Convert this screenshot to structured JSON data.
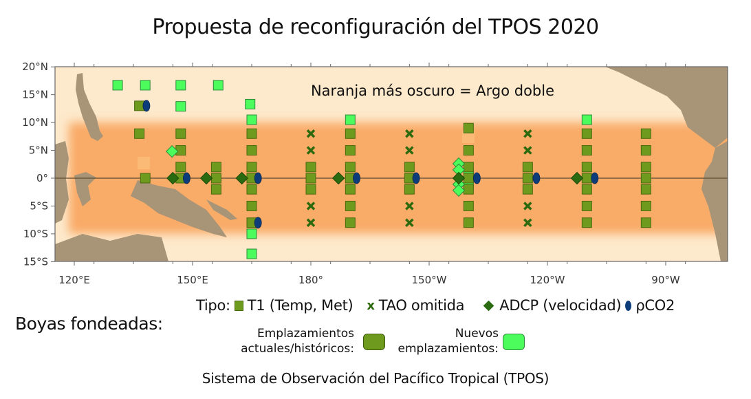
{
  "title": "Propuesta de reconfiguración del TPOS 2020",
  "annotation": "Naranja más oscuro = Argo doble",
  "axes": {
    "lat_ticks": [
      {
        "v": 20,
        "label": "20°N"
      },
      {
        "v": 15,
        "label": "15°N"
      },
      {
        "v": 10,
        "label": "10°N"
      },
      {
        "v": 5,
        "label": "5°N"
      },
      {
        "v": 0,
        "label": "0°"
      },
      {
        "v": -5,
        "label": "5°S"
      },
      {
        "v": -10,
        "label": "10°S"
      },
      {
        "v": -15,
        "label": "15°S"
      }
    ],
    "lon_ticks": [
      {
        "v": 120,
        "label": "120°E"
      },
      {
        "v": 150,
        "label": "150°E"
      },
      {
        "v": 180,
        "label": "180°"
      },
      {
        "v": 210,
        "label": "150°W"
      },
      {
        "v": 240,
        "label": "120°W"
      },
      {
        "v": 270,
        "label": "90°W"
      }
    ],
    "lon_range_deg_east": [
      115,
      285
    ],
    "lat_range": [
      -15,
      20
    ]
  },
  "colors": {
    "ocean": "#fde9cc",
    "argo_double_band": "#f9ab68",
    "land": "#a89477",
    "existing": "#6e9a1e",
    "new": "#4cfc5c",
    "tao_omitted": "#2d6a0e",
    "adcp": "#2a6a10",
    "pco2": "#0c3d7a"
  },
  "argo_double_band_lat": [
    -10,
    10
  ],
  "markers": [
    {
      "type": "t1",
      "status": "new",
      "lon": 131,
      "lat": 16.7
    },
    {
      "type": "t1",
      "status": "new",
      "lon": 138,
      "lat": 16.7
    },
    {
      "type": "t1",
      "status": "new",
      "lon": 147,
      "lat": 16.7
    },
    {
      "type": "t1",
      "status": "new",
      "lon": 156.5,
      "lat": 16.7
    },
    {
      "type": "t1",
      "status": "new",
      "lon": 147,
      "lat": 12.9
    },
    {
      "type": "t1",
      "status": "new",
      "lon": 164.6,
      "lat": 13.3
    },
    {
      "type": "t1",
      "status": "new",
      "lon": 165,
      "lat": 10.5
    },
    {
      "type": "t1",
      "status": "new",
      "lon": 165,
      "lat": -10
    },
    {
      "type": "t1",
      "status": "new",
      "lon": 165,
      "lat": -13.6
    },
    {
      "type": "t1",
      "status": "new",
      "lon": 190,
      "lat": 10.5
    },
    {
      "type": "t1",
      "status": "new",
      "lon": 250,
      "lat": 10.5
    },
    {
      "type": "t1",
      "status": "new",
      "lon": 220,
      "lat": 1
    },
    {
      "type": "t1",
      "status": "new",
      "lon": 220,
      "lat": -1.2
    },
    {
      "type": "t1",
      "status": "existing",
      "lon": 136.5,
      "lat": 13
    },
    {
      "type": "t1",
      "status": "existing",
      "lon": 136.5,
      "lat": 8
    },
    {
      "type": "t1",
      "status": "existing",
      "lon": 138,
      "lat": 0
    },
    {
      "type": "t1",
      "status": "existing",
      "lon": 147,
      "lat": 8
    },
    {
      "type": "t1",
      "status": "existing",
      "lon": 147,
      "lat": 5
    },
    {
      "type": "t1",
      "status": "existing",
      "lon": 147,
      "lat": 2
    },
    {
      "type": "t1",
      "status": "existing",
      "lon": 147,
      "lat": 0
    },
    {
      "type": "t1",
      "status": "existing",
      "lon": 156,
      "lat": 2
    },
    {
      "type": "t1",
      "status": "existing",
      "lon": 156,
      "lat": 0
    },
    {
      "type": "t1",
      "status": "existing",
      "lon": 156,
      "lat": -2
    },
    {
      "type": "t1",
      "status": "existing",
      "lon": 165,
      "lat": 8
    },
    {
      "type": "t1",
      "status": "existing",
      "lon": 165,
      "lat": 5
    },
    {
      "type": "t1",
      "status": "existing",
      "lon": 165,
      "lat": 2
    },
    {
      "type": "t1",
      "status": "existing",
      "lon": 165,
      "lat": 0
    },
    {
      "type": "t1",
      "status": "existing",
      "lon": 165,
      "lat": -2
    },
    {
      "type": "t1",
      "status": "existing",
      "lon": 165,
      "lat": -5
    },
    {
      "type": "t1",
      "status": "existing",
      "lon": 165,
      "lat": -8
    },
    {
      "type": "tao_omitted",
      "lon": 180,
      "lat": 8
    },
    {
      "type": "tao_omitted",
      "lon": 180,
      "lat": 5
    },
    {
      "type": "t1",
      "status": "existing",
      "lon": 180,
      "lat": 2
    },
    {
      "type": "t1",
      "status": "existing",
      "lon": 180,
      "lat": 0
    },
    {
      "type": "t1",
      "status": "existing",
      "lon": 180,
      "lat": -2
    },
    {
      "type": "tao_omitted",
      "lon": 180,
      "lat": -5
    },
    {
      "type": "tao_omitted",
      "lon": 180,
      "lat": -8
    },
    {
      "type": "t1",
      "status": "existing",
      "lon": 190,
      "lat": 8
    },
    {
      "type": "t1",
      "status": "existing",
      "lon": 190,
      "lat": 5
    },
    {
      "type": "t1",
      "status": "existing",
      "lon": 190,
      "lat": 2
    },
    {
      "type": "t1",
      "status": "existing",
      "lon": 190,
      "lat": 0
    },
    {
      "type": "t1",
      "status": "existing",
      "lon": 190,
      "lat": -2
    },
    {
      "type": "t1",
      "status": "existing",
      "lon": 190,
      "lat": -5
    },
    {
      "type": "t1",
      "status": "existing",
      "lon": 190,
      "lat": -8
    },
    {
      "type": "tao_omitted",
      "lon": 205,
      "lat": 8
    },
    {
      "type": "tao_omitted",
      "lon": 205,
      "lat": 5
    },
    {
      "type": "t1",
      "status": "existing",
      "lon": 205,
      "lat": 2
    },
    {
      "type": "t1",
      "status": "existing",
      "lon": 205,
      "lat": 0
    },
    {
      "type": "t1",
      "status": "existing",
      "lon": 205,
      "lat": -2
    },
    {
      "type": "tao_omitted",
      "lon": 205,
      "lat": -5
    },
    {
      "type": "tao_omitted",
      "lon": 205,
      "lat": -8
    },
    {
      "type": "t1",
      "status": "existing",
      "lon": 220,
      "lat": 9
    },
    {
      "type": "t1",
      "status": "existing",
      "lon": 220,
      "lat": 5
    },
    {
      "type": "t1",
      "status": "existing",
      "lon": 220,
      "lat": 2
    },
    {
      "type": "t1",
      "status": "existing",
      "lon": 220,
      "lat": 0
    },
    {
      "type": "t1",
      "status": "existing",
      "lon": 220,
      "lat": -2
    },
    {
      "type": "t1",
      "status": "existing",
      "lon": 220,
      "lat": -5
    },
    {
      "type": "t1",
      "status": "existing",
      "lon": 220,
      "lat": -8
    },
    {
      "type": "tao_omitted",
      "lon": 235,
      "lat": 8
    },
    {
      "type": "tao_omitted",
      "lon": 235,
      "lat": 5
    },
    {
      "type": "t1",
      "status": "existing",
      "lon": 235,
      "lat": 2
    },
    {
      "type": "t1",
      "status": "existing",
      "lon": 235,
      "lat": 0
    },
    {
      "type": "t1",
      "status": "existing",
      "lon": 235,
      "lat": -2
    },
    {
      "type": "tao_omitted",
      "lon": 235,
      "lat": -5
    },
    {
      "type": "tao_omitted",
      "lon": 235,
      "lat": -8
    },
    {
      "type": "t1",
      "status": "existing",
      "lon": 250,
      "lat": 8
    },
    {
      "type": "t1",
      "status": "existing",
      "lon": 250,
      "lat": 5
    },
    {
      "type": "t1",
      "status": "existing",
      "lon": 250,
      "lat": 2
    },
    {
      "type": "t1",
      "status": "existing",
      "lon": 250,
      "lat": 0
    },
    {
      "type": "t1",
      "status": "existing",
      "lon": 250,
      "lat": -2
    },
    {
      "type": "t1",
      "status": "existing",
      "lon": 250,
      "lat": -5
    },
    {
      "type": "t1",
      "status": "existing",
      "lon": 250,
      "lat": -8
    },
    {
      "type": "t1",
      "status": "existing",
      "lon": 265,
      "lat": 8
    },
    {
      "type": "t1",
      "status": "existing",
      "lon": 265,
      "lat": 5
    },
    {
      "type": "t1",
      "status": "existing",
      "lon": 265,
      "lat": 2
    },
    {
      "type": "t1",
      "status": "existing",
      "lon": 265,
      "lat": 0
    },
    {
      "type": "t1",
      "status": "existing",
      "lon": 265,
      "lat": -2
    },
    {
      "type": "t1",
      "status": "existing",
      "lon": 265,
      "lat": -5
    },
    {
      "type": "t1",
      "status": "existing",
      "lon": 265,
      "lat": -8
    },
    {
      "type": "adcp",
      "status": "new",
      "lon": 144.8,
      "lat": 4.8
    },
    {
      "type": "adcp",
      "status": "existing",
      "lon": 145,
      "lat": 0
    },
    {
      "type": "adcp",
      "status": "existing",
      "lon": 153.5,
      "lat": 0
    },
    {
      "type": "adcp",
      "status": "existing",
      "lon": 162.5,
      "lat": 0
    },
    {
      "type": "adcp",
      "status": "existing",
      "lon": 187,
      "lat": 0
    },
    {
      "type": "adcp",
      "status": "new",
      "lon": 217.5,
      "lat": 2.6
    },
    {
      "type": "adcp",
      "status": "new",
      "lon": 217.5,
      "lat": 1.5
    },
    {
      "type": "adcp",
      "status": "new",
      "lon": 217.5,
      "lat": -1.1
    },
    {
      "type": "adcp",
      "status": "new",
      "lon": 217.5,
      "lat": -2.2
    },
    {
      "type": "adcp",
      "status": "existing",
      "lon": 217.5,
      "lat": 0
    },
    {
      "type": "adcp",
      "status": "existing",
      "lon": 247.5,
      "lat": 0
    },
    {
      "type": "pco2",
      "lon": 138.3,
      "lat": 13
    },
    {
      "type": "pco2",
      "lon": 148.5,
      "lat": 0
    },
    {
      "type": "pco2",
      "lon": 166.6,
      "lat": 0
    },
    {
      "type": "pco2",
      "lon": 166.6,
      "lat": -8
    },
    {
      "type": "pco2",
      "lon": 191.6,
      "lat": 0
    },
    {
      "type": "pco2",
      "lon": 206.7,
      "lat": 0
    },
    {
      "type": "pco2",
      "lon": 222.1,
      "lat": 0
    },
    {
      "type": "pco2",
      "lon": 237.2,
      "lat": 0
    },
    {
      "type": "pco2",
      "lon": 252,
      "lat": 0
    }
  ],
  "legend": {
    "type_label": "Tipo:",
    "t1": "T1 (Temp, Met)",
    "tao_omitted": "TAO omitida",
    "adcp": "ADCP (velocidad)",
    "pco2": "ρCO2",
    "moored_buoys": "Boyas fondeadas:",
    "existing_line1": "Emplazamientos",
    "existing_line2": "actuales/históricos:",
    "new_line1": "Nuevos",
    "new_line2": "emplazamientos:"
  },
  "caption": "Sistema de Observación del Pacífico Tropical (TPOS)"
}
